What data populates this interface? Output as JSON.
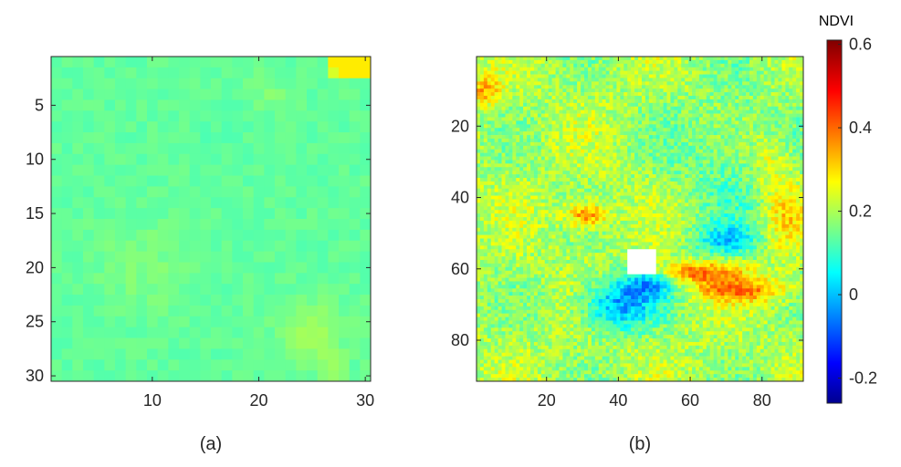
{
  "chart_data": [
    {
      "type": "heatmap",
      "caption": "(a)",
      "x_ticks": [
        10,
        20,
        30
      ],
      "y_ticks": [
        5,
        10,
        15,
        20,
        25,
        30
      ],
      "xlim": [
        0.5,
        30.5
      ],
      "ylim": [
        0.5,
        30.5
      ],
      "grid_size": 30,
      "value_range": [
        0.12,
        0.3
      ],
      "typical_value": 0.15
    },
    {
      "type": "heatmap",
      "caption": "(b)",
      "x_ticks": [
        20,
        40,
        60,
        80
      ],
      "y_ticks": [
        20,
        40,
        60,
        80
      ],
      "xlim": [
        0.5,
        91.5
      ],
      "ylim": [
        0.5,
        91.5
      ],
      "grid_size": 91,
      "value_range": [
        -0.2,
        0.45
      ],
      "missing_block": {
        "x": [
          43,
          50
        ],
        "y": [
          55,
          61
        ]
      }
    }
  ],
  "colorbar": {
    "title": "NDVI",
    "ticks": [
      0.6,
      0.4,
      0.2,
      0,
      -0.2
    ],
    "tick_labels": [
      "0.6",
      "0.4",
      "0.2",
      "0",
      "-0.2"
    ],
    "range": [
      -0.26,
      0.61
    ],
    "colormap": "jet"
  }
}
